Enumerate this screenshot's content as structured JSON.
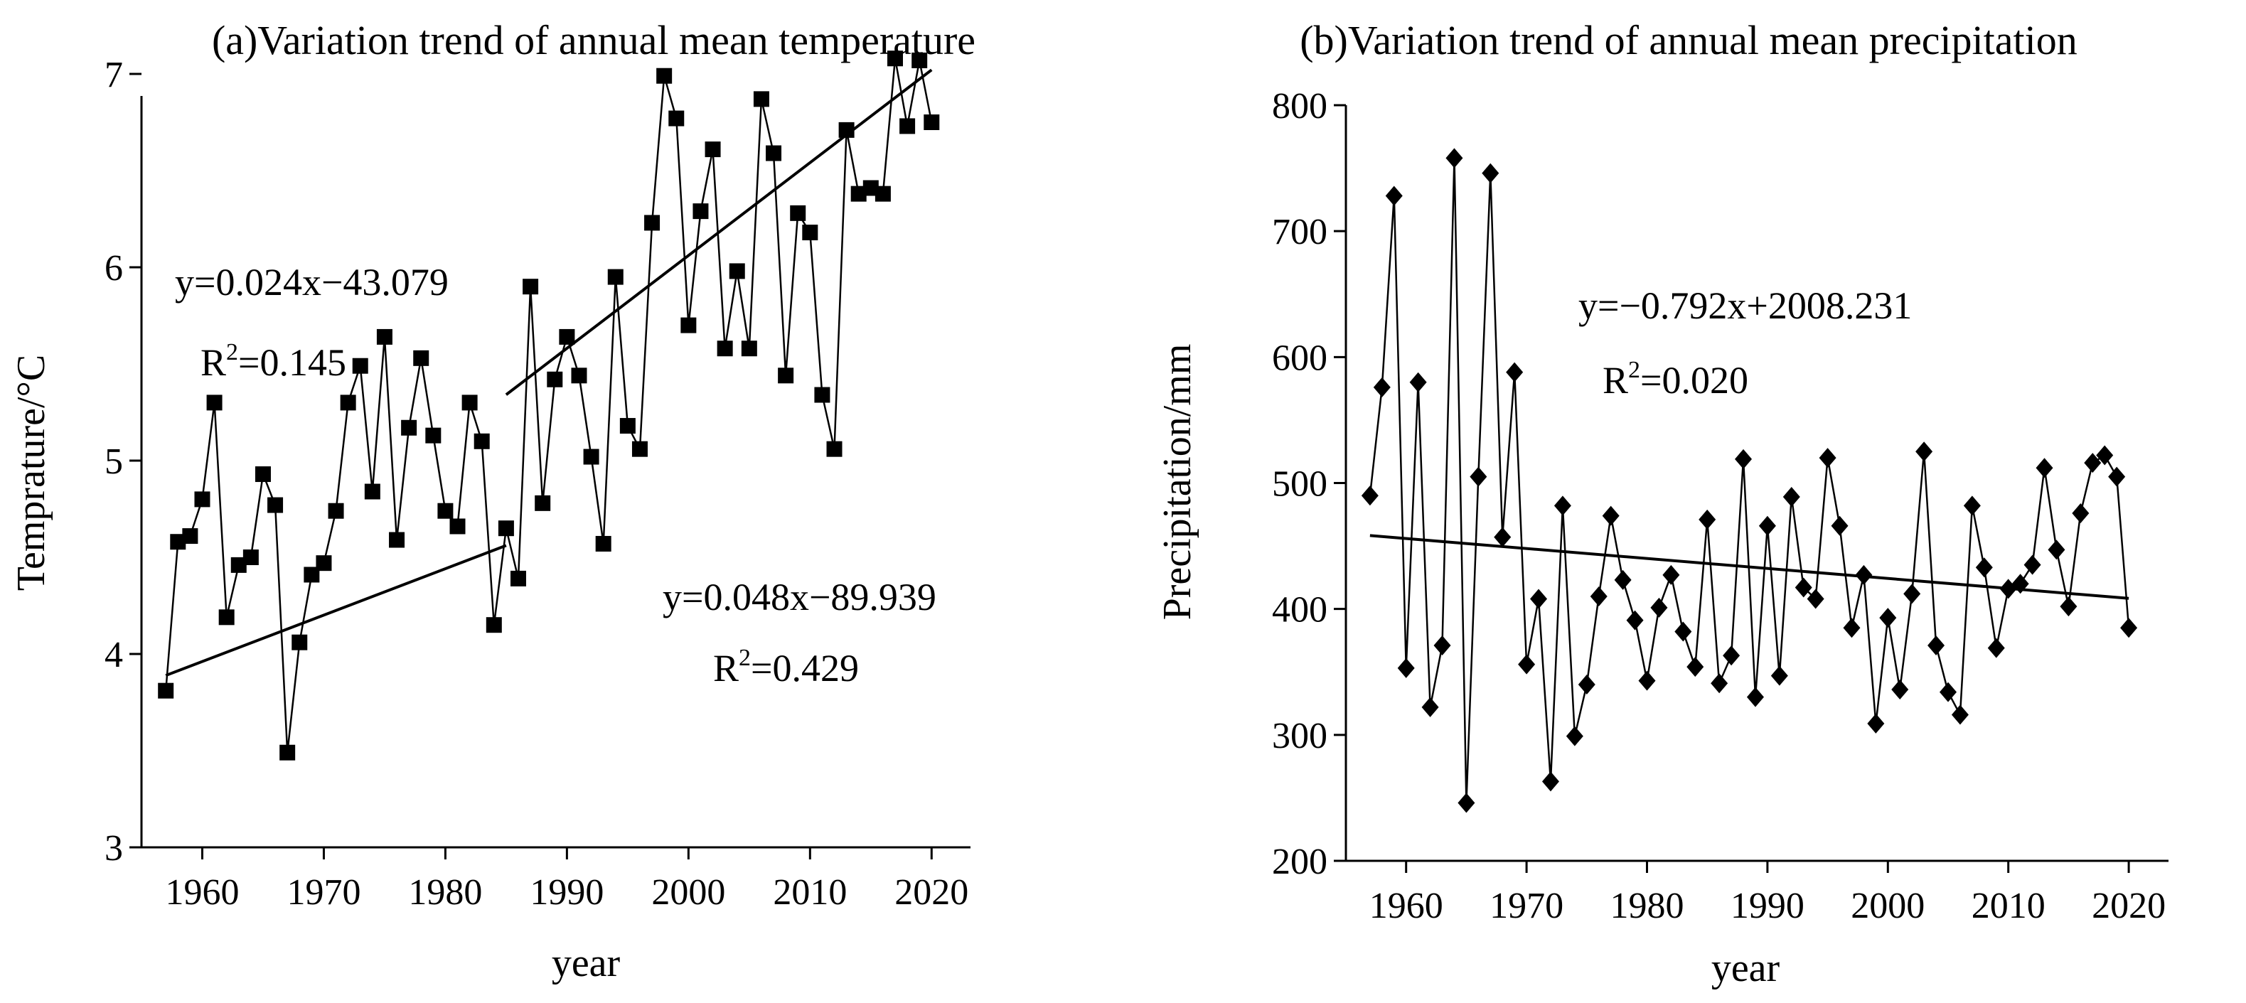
{
  "chart_data": [
    {
      "id": "temperature",
      "type": "line",
      "title": "(a)Variation trend of annual mean temperature",
      "xlabel": "year",
      "ylabel": "Temprature/°C",
      "xlim": [
        1955,
        2023
      ],
      "ylim": [
        3,
        7.3
      ],
      "xticks": [
        1960,
        1970,
        1980,
        1990,
        2000,
        2010,
        2020
      ],
      "yticks": [
        3,
        4,
        5,
        6,
        7
      ],
      "marker": "square",
      "series": [
        {
          "name": "Annual mean temperature",
          "x": [
            1957,
            1958,
            1959,
            1960,
            1961,
            1962,
            1963,
            1964,
            1965,
            1966,
            1967,
            1968,
            1969,
            1970,
            1971,
            1972,
            1973,
            1974,
            1975,
            1976,
            1977,
            1978,
            1979,
            1980,
            1981,
            1982,
            1983,
            1984,
            1985,
            1986,
            1987,
            1988,
            1989,
            1990,
            1991,
            1992,
            1993,
            1994,
            1995,
            1996,
            1997,
            1998,
            1999,
            2000,
            2001,
            2002,
            2003,
            2004,
            2005,
            2006,
            2007,
            2008,
            2009,
            2010,
            2011,
            2012,
            2013,
            2014,
            2015,
            2016,
            2017,
            2018,
            2019,
            2020
          ],
          "values": [
            3.81,
            4.58,
            4.61,
            4.8,
            5.3,
            4.19,
            4.46,
            4.5,
            4.93,
            4.77,
            3.49,
            4.06,
            4.41,
            4.47,
            4.74,
            5.3,
            5.49,
            4.84,
            5.64,
            4.59,
            5.17,
            5.53,
            5.13,
            4.74,
            4.66,
            5.3,
            5.1,
            4.15,
            4.65,
            4.39,
            5.9,
            4.78,
            5.42,
            5.64,
            5.44,
            5.02,
            4.57,
            5.95,
            5.18,
            5.06,
            6.23,
            6.99,
            6.77,
            5.7,
            6.29,
            6.61,
            5.58,
            5.98,
            5.58,
            6.87,
            6.59,
            5.44,
            6.28,
            6.18,
            5.34,
            5.06,
            6.71,
            6.38,
            6.41,
            6.38,
            7.08,
            6.73,
            7.07,
            6.75
          ]
        }
      ],
      "trendlines": [
        {
          "equation": "y=0.024x−43.079",
          "r2_prefix": "R",
          "r2_sup": "2",
          "r2_value": "=0.145",
          "slope": 0.024,
          "intercept": -43.079,
          "x_range": [
            1957,
            1985
          ]
        },
        {
          "equation": "y=0.048x−89.939",
          "r2_prefix": "R",
          "r2_sup": "2",
          "r2_value": "=0.429",
          "slope": 0.048,
          "intercept": -89.939,
          "x_range": [
            1985,
            2020
          ]
        }
      ]
    },
    {
      "id": "precipitation",
      "type": "line",
      "title": "(b)Variation trend of annual mean precipitation",
      "xlabel": "year",
      "ylabel": "Precipitation/mm",
      "xlim": [
        1955,
        2023
      ],
      "ylim": [
        200,
        800
      ],
      "xticks": [
        1960,
        1970,
        1980,
        1990,
        2000,
        2010,
        2020
      ],
      "yticks": [
        200,
        300,
        400,
        500,
        600,
        700,
        800
      ],
      "marker": "diamond",
      "series": [
        {
          "name": "Annual mean precipitation",
          "x": [
            1957,
            1958,
            1959,
            1960,
            1961,
            1962,
            1963,
            1964,
            1965,
            1966,
            1967,
            1968,
            1969,
            1970,
            1971,
            1972,
            1973,
            1974,
            1975,
            1976,
            1977,
            1978,
            1979,
            1980,
            1981,
            1982,
            1983,
            1984,
            1985,
            1986,
            1987,
            1988,
            1989,
            1990,
            1991,
            1992,
            1993,
            1994,
            1995,
            1996,
            1997,
            1998,
            1999,
            2000,
            2001,
            2002,
            2003,
            2004,
            2005,
            2006,
            2007,
            2008,
            2009,
            2010,
            2011,
            2012,
            2013,
            2014,
            2015,
            2016,
            2017,
            2018,
            2019,
            2020
          ],
          "values": [
            490,
            576,
            728,
            353,
            580,
            322,
            371,
            758,
            246,
            505,
            746,
            457,
            588,
            356,
            408,
            263,
            482,
            299,
            340,
            410,
            474,
            423,
            391,
            343,
            401,
            427,
            382,
            354,
            471,
            341,
            363,
            519,
            330,
            466,
            347,
            489,
            417,
            408,
            520,
            466,
            385,
            427,
            309,
            393,
            336,
            412,
            525,
            371,
            334,
            316,
            482,
            433,
            369,
            416,
            420,
            435,
            512,
            447,
            402,
            476,
            516,
            522,
            505,
            385
          ]
        }
      ],
      "trendlines": [
        {
          "equation": "y=−0.792x+2008.231",
          "r2_prefix": "R",
          "r2_sup": "2",
          "r2_value": "=0.020",
          "slope": -0.792,
          "intercept": 2008.231,
          "x_range": [
            1957,
            2020
          ]
        }
      ]
    }
  ]
}
